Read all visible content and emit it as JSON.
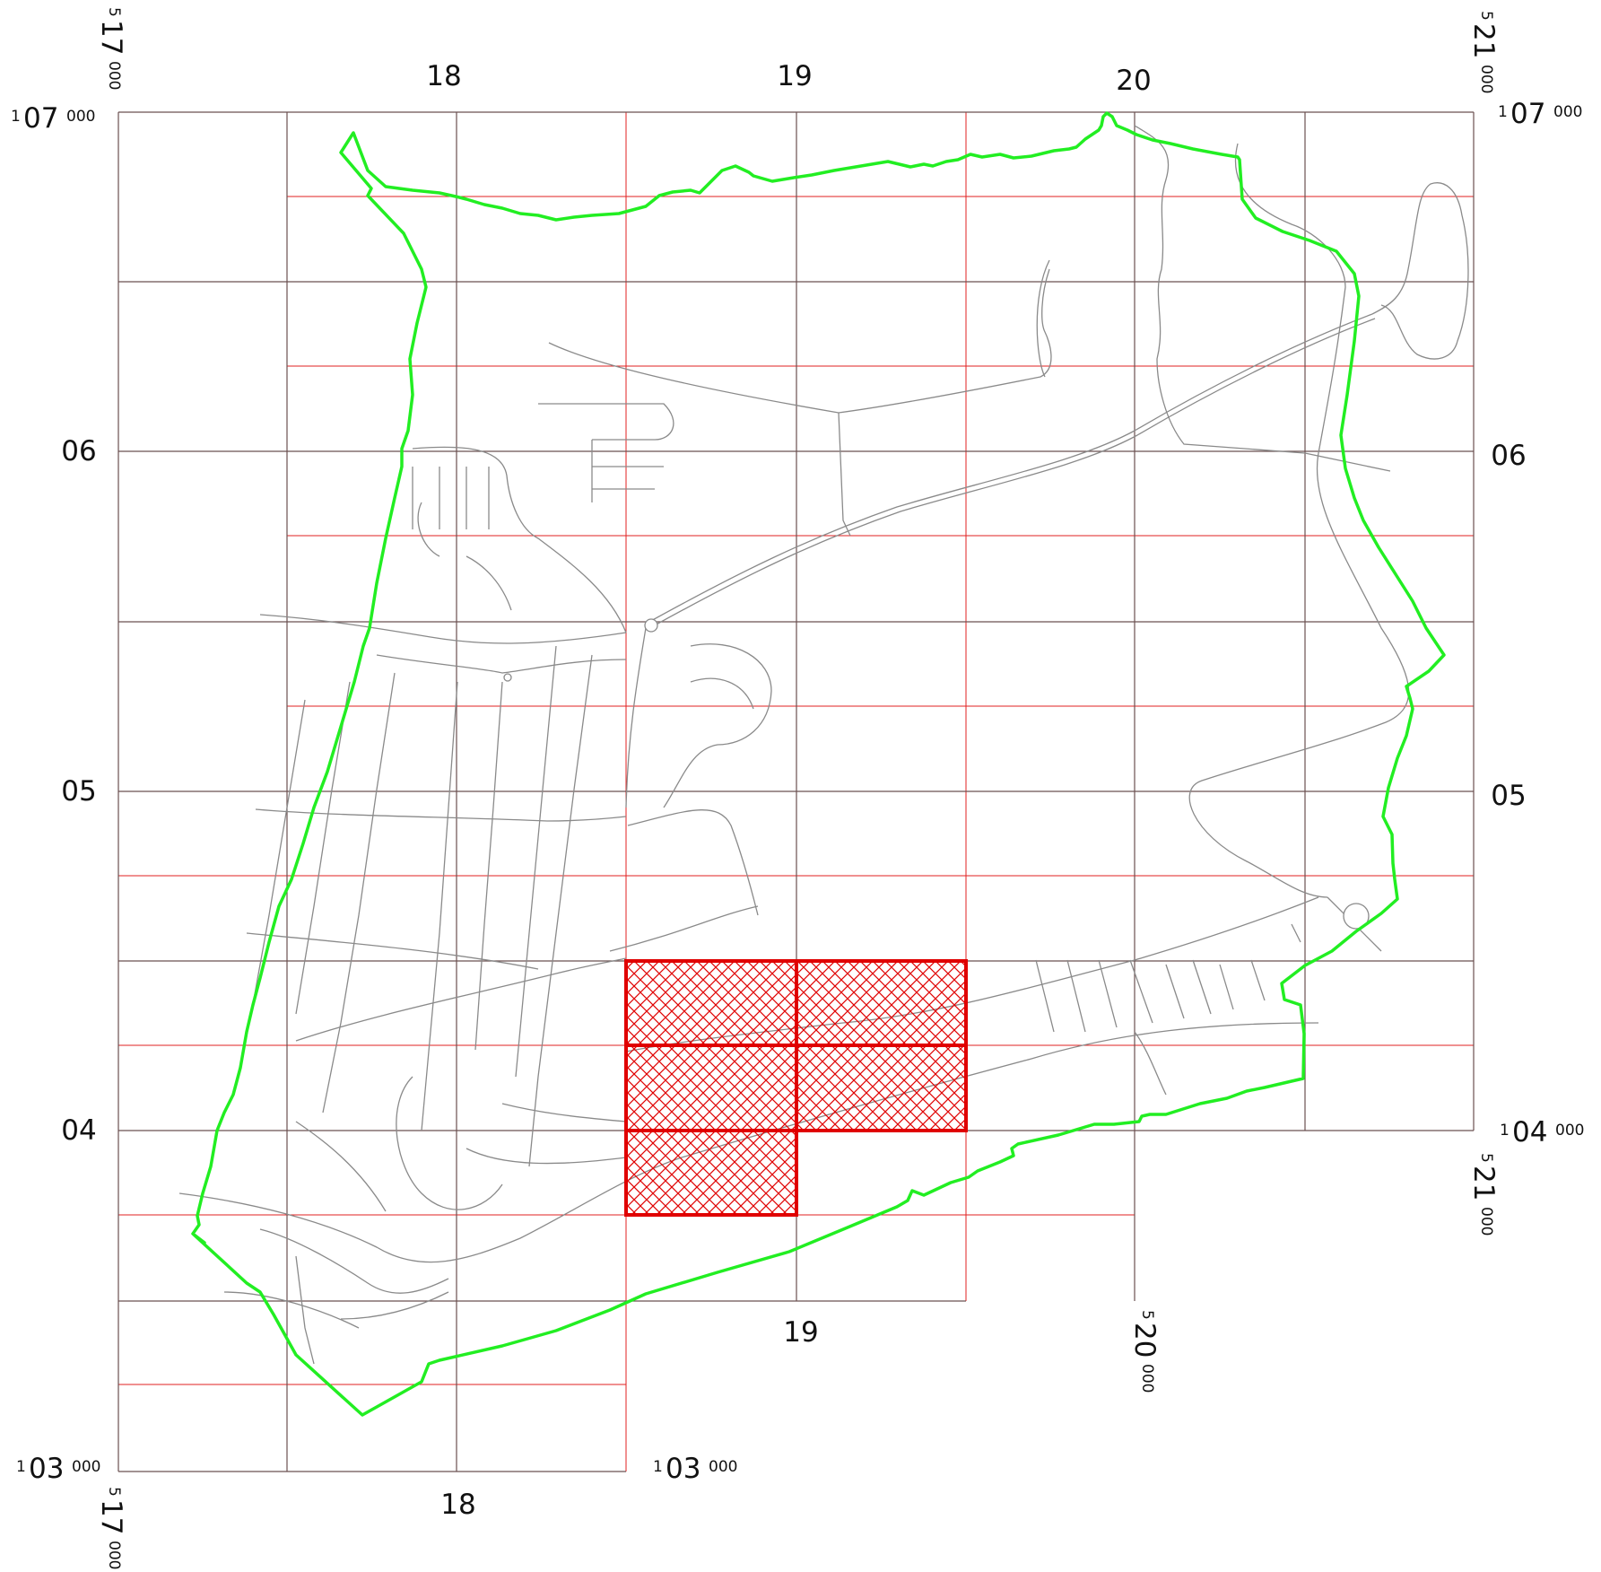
{
  "map": {
    "grid_labels": {
      "top": [
        "18",
        "19",
        "20"
      ],
      "bottom": [
        "19",
        "18"
      ],
      "left": [
        "06",
        "05",
        "04"
      ],
      "right": [
        "06",
        "05"
      ]
    },
    "corner_labels": {
      "top_left_easting": {
        "sup": "5",
        "main": "17",
        "sub": "000"
      },
      "top_left_northing": {
        "sup": "1",
        "main": "07",
        "sub": "000"
      },
      "top_right_easting": {
        "sup": "5",
        "main": "21",
        "sub": "000"
      },
      "top_right_northing": {
        "sup": "1",
        "main": "07",
        "sub": "000"
      },
      "right_lower_northing": {
        "sup": "1",
        "main": "04",
        "sub": "000"
      },
      "right_lower_easting": {
        "sup": "5",
        "main": "21",
        "sub": "000"
      },
      "bottom_mid_easting": {
        "sup": "5",
        "main": "20",
        "sub": "000"
      },
      "bottom_left_northing": {
        "sup": "1",
        "main": "03",
        "sub": "000"
      },
      "bottom_mid_northing": {
        "sup": "1",
        "main": "03",
        "sub": "000"
      },
      "bottom_left_easting": {
        "sup": "5",
        "main": "17",
        "sub": "000"
      }
    },
    "colors": {
      "boundary": "#22ee22",
      "grid_major": "#6b5050",
      "grid_minor": "#e02020",
      "hatch": "#e00000",
      "roads": "#8a8a8a"
    }
  }
}
